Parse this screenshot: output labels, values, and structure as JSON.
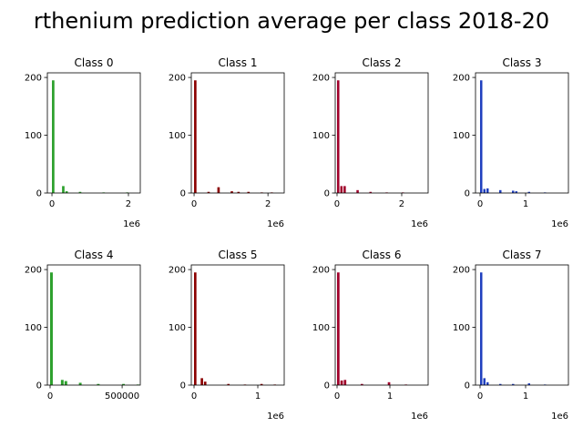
{
  "title": "rthenium prediction average per class 2018-20",
  "chart_data": [
    {
      "type": "histogram",
      "title": "Class 0",
      "color": "#2ca02c",
      "xlim": [
        -120000,
        2310000
      ],
      "xticks": [
        0,
        {
          "value": 2000000,
          "label": "2"
        }
      ],
      "x_offset_label": "1e6",
      "ylim": [
        0,
        208
      ],
      "yticks": [
        0,
        100,
        200
      ],
      "bins": [
        0,
        88000,
        176000,
        264000,
        352000,
        440000,
        528000,
        616000,
        704000,
        792000,
        880000,
        968000,
        1056000,
        1144000,
        1232000,
        1320000,
        1408000,
        1496000,
        1584000,
        1672000,
        1760000,
        1848000,
        1936000,
        2024000,
        2112000,
        2200000
      ],
      "values": [
        195,
        0,
        0,
        12,
        3,
        0,
        0,
        0,
        2,
        0,
        0,
        0,
        0,
        0,
        0,
        1,
        0,
        0,
        0,
        0,
        0,
        0,
        1,
        0,
        0
      ]
    },
    {
      "type": "histogram",
      "title": "Class 1",
      "color": "#8b0000",
      "xlim": [
        -75000,
        2440000
      ],
      "xticks": [
        0,
        {
          "value": 2000000,
          "label": "2"
        }
      ],
      "x_offset_label": "1e6",
      "ylim": [
        0,
        208
      ],
      "yticks": [
        0,
        100,
        200
      ],
      "bins": [
        0,
        90000,
        180000,
        270000,
        360000,
        450000,
        540000,
        630000,
        720000,
        810000,
        900000,
        990000,
        1080000,
        1170000,
        1260000,
        1350000,
        1440000,
        1530000,
        1620000,
        1710000,
        1800000,
        1890000,
        1980000,
        2070000,
        2160000,
        2250000
      ],
      "values": [
        195,
        0,
        0,
        0,
        2,
        0,
        0,
        10,
        0,
        0,
        0,
        3,
        0,
        2,
        0,
        0,
        2,
        0,
        0,
        0,
        1,
        0,
        0,
        1,
        0
      ]
    },
    {
      "type": "histogram",
      "title": "Class 2",
      "color": "#a0002a",
      "xlim": [
        -56000,
        2817000
      ],
      "xticks": [
        0,
        {
          "value": 2000000,
          "label": "2"
        }
      ],
      "x_offset_label": "1e6",
      "ylim": [
        0,
        208
      ],
      "yticks": [
        0,
        100,
        200
      ],
      "bins": [
        0,
        100000,
        200000,
        300000,
        400000,
        500000,
        600000,
        700000,
        800000,
        900000,
        1000000,
        1100000,
        1200000,
        1300000,
        1400000,
        1500000,
        1600000,
        1700000,
        1800000,
        1900000,
        2000000,
        2100000,
        2200000,
        2300000,
        2400000,
        2500000
      ],
      "values": [
        195,
        12,
        12,
        0,
        0,
        0,
        5,
        0,
        0,
        0,
        2,
        0,
        0,
        0,
        0,
        1,
        0,
        0,
        0,
        0,
        1,
        0,
        0,
        0,
        0
      ]
    },
    {
      "type": "histogram",
      "title": "Class 3",
      "color": "#1f3fbf",
      "xlim": [
        -100000,
        1940000
      ],
      "xticks": [
        0,
        {
          "value": 1000000,
          "label": "1"
        }
      ],
      "x_offset_label": "1e6",
      "ylim": [
        0,
        208
      ],
      "yticks": [
        0,
        100,
        200
      ],
      "bins": [
        0,
        70000,
        140000,
        210000,
        280000,
        350000,
        420000,
        490000,
        560000,
        630000,
        700000,
        770000,
        840000,
        910000,
        980000,
        1050000,
        1120000,
        1190000,
        1260000,
        1330000,
        1400000,
        1470000,
        1540000,
        1610000,
        1680000,
        1750000
      ],
      "values": [
        195,
        7,
        8,
        0,
        0,
        0,
        5,
        0,
        0,
        0,
        4,
        3,
        0,
        0,
        0,
        2,
        0,
        0,
        0,
        0,
        1,
        0,
        0,
        0,
        0
      ]
    },
    {
      "type": "histogram",
      "title": "Class 4",
      "color": "#2ca02c",
      "xlim": [
        -19000,
        626000
      ],
      "xticks": [
        0,
        500000
      ],
      "ylim": [
        0,
        208
      ],
      "yticks": [
        0,
        100,
        200
      ],
      "bins": [
        0,
        25000,
        50000,
        75000,
        100000,
        125000,
        150000,
        175000,
        200000,
        225000,
        250000,
        275000,
        300000,
        325000,
        350000,
        375000,
        400000,
        425000,
        450000,
        475000,
        500000,
        525000,
        550000,
        575000,
        600000,
        625000
      ],
      "values": [
        195,
        0,
        0,
        9,
        7,
        0,
        0,
        0,
        4,
        0,
        0,
        0,
        0,
        2,
        0,
        0,
        0,
        0,
        0,
        0,
        2,
        0,
        0,
        0,
        1
      ]
    },
    {
      "type": "histogram",
      "title": "Class 5",
      "color": "#8b0000",
      "xlim": [
        -43000,
        1414000
      ],
      "xticks": [
        0,
        {
          "value": 1000000,
          "label": "1"
        }
      ],
      "x_offset_label": "1e6",
      "ylim": [
        0,
        208
      ],
      "yticks": [
        0,
        100,
        200
      ],
      "bins": [
        0,
        52000,
        104000,
        156000,
        208000,
        260000,
        312000,
        364000,
        416000,
        468000,
        520000,
        572000,
        624000,
        676000,
        728000,
        780000,
        832000,
        884000,
        936000,
        988000,
        1040000,
        1092000,
        1144000,
        1196000,
        1248000,
        1300000
      ],
      "values": [
        195,
        0,
        12,
        6,
        0,
        0,
        0,
        0,
        0,
        0,
        2,
        0,
        0,
        0,
        0,
        1,
        0,
        0,
        0,
        0,
        2,
        0,
        0,
        0,
        1
      ]
    },
    {
      "type": "histogram",
      "title": "Class 6",
      "color": "#a0002a",
      "xlim": [
        -34500,
        1724000
      ],
      "xticks": [
        0,
        {
          "value": 1000000,
          "label": "1"
        }
      ],
      "x_offset_label": "1e6",
      "ylim": [
        0,
        208
      ],
      "yticks": [
        0,
        100,
        200
      ],
      "bins": [
        0,
        64000,
        128000,
        192000,
        256000,
        320000,
        384000,
        448000,
        512000,
        576000,
        640000,
        704000,
        768000,
        832000,
        896000,
        960000,
        1024000,
        1088000,
        1152000,
        1216000,
        1280000,
        1344000,
        1408000,
        1472000,
        1536000,
        1600000
      ],
      "values": [
        195,
        8,
        9,
        0,
        0,
        0,
        0,
        2,
        0,
        0,
        0,
        0,
        0,
        0,
        0,
        5,
        0,
        0,
        0,
        0,
        1,
        0,
        0,
        0,
        0
      ]
    },
    {
      "type": "histogram",
      "title": "Class 7",
      "color": "#1f3fbf",
      "xlim": [
        -100000,
        1940000
      ],
      "xticks": [
        0,
        {
          "value": 1000000,
          "label": "1"
        }
      ],
      "x_offset_label": "1e6",
      "ylim": [
        0,
        208
      ],
      "yticks": [
        0,
        100,
        200
      ],
      "bins": [
        0,
        70000,
        140000,
        210000,
        280000,
        350000,
        420000,
        490000,
        560000,
        630000,
        700000,
        770000,
        840000,
        910000,
        980000,
        1050000,
        1120000,
        1190000,
        1260000,
        1330000,
        1400000,
        1470000,
        1540000,
        1610000,
        1680000,
        1750000
      ],
      "values": [
        195,
        12,
        5,
        0,
        0,
        0,
        2,
        0,
        0,
        0,
        2,
        0,
        0,
        0,
        0,
        3,
        0,
        0,
        0,
        0,
        1,
        0,
        0,
        0,
        0
      ]
    }
  ]
}
